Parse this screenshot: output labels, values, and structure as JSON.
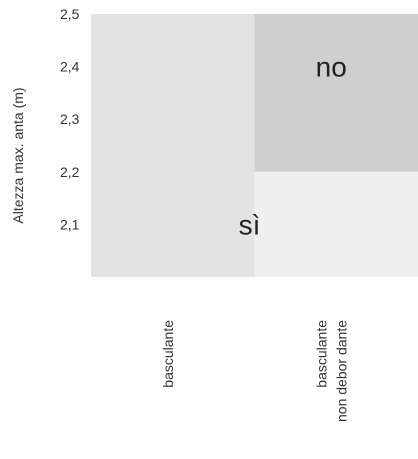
{
  "chart_data": {
    "type": "heatmap",
    "title": "",
    "ylabel": "Altezza  max. anta (m)",
    "xlabel": "",
    "ylim": [
      2.0,
      2.5
    ],
    "y_ticks": [
      "2,1",
      "2,2",
      "2,3",
      "2,4",
      "2,5"
    ],
    "y_tick_values": [
      2.1,
      2.2,
      2.3,
      2.4,
      2.5
    ],
    "categories": [
      {
        "lines": [
          "basculante"
        ]
      },
      {
        "lines": [
          "basculante",
          "non debor dante"
        ]
      }
    ],
    "regions": [
      {
        "category": 0,
        "y_from": 2.0,
        "y_to": 2.5,
        "color": "#e3e3e3"
      },
      {
        "category": 1,
        "y_from": 2.2,
        "y_to": 2.5,
        "color": "#cfcfcf"
      },
      {
        "category": 1,
        "y_from": 2.0,
        "y_to": 2.2,
        "color": "#f0f0f0"
      }
    ],
    "region_labels": [
      {
        "text": "no",
        "category": 1,
        "y": 2.4
      },
      {
        "text": "sì",
        "category": 0.5,
        "y": 2.1
      }
    ],
    "grid": false,
    "legend": "none"
  }
}
